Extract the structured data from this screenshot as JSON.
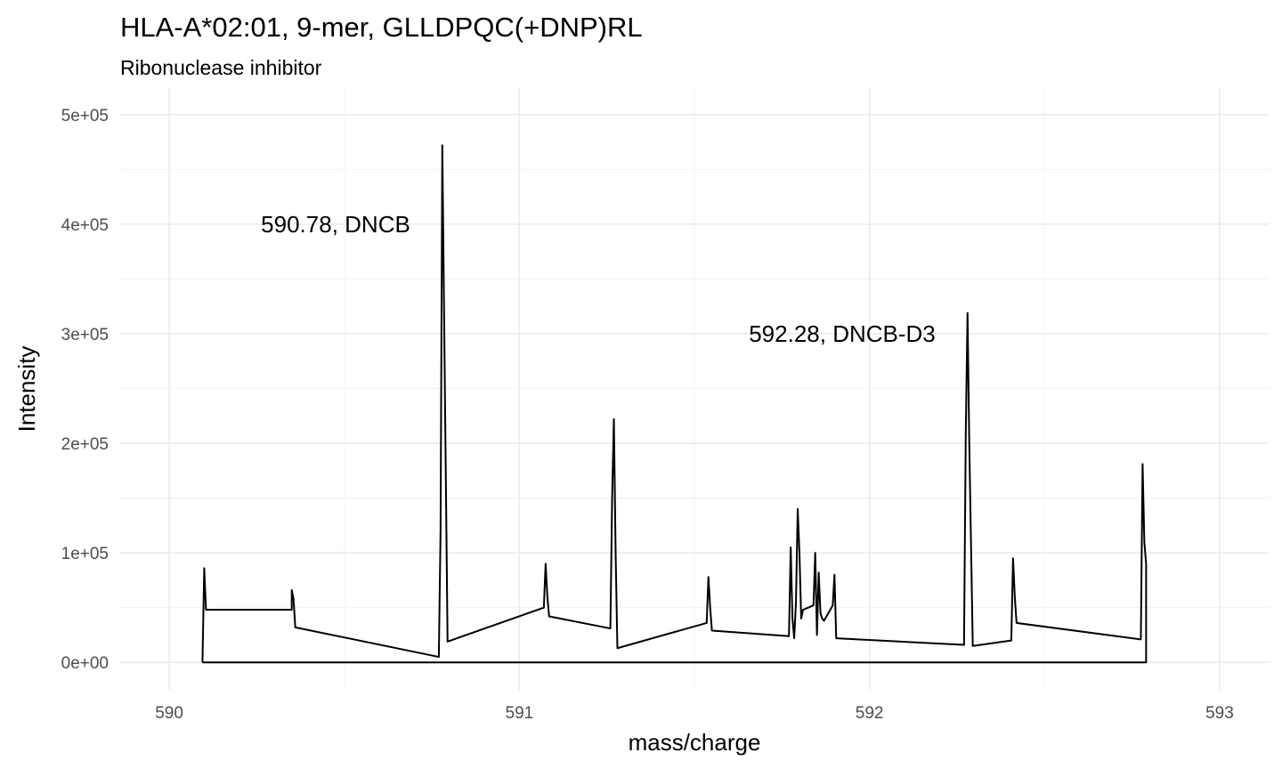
{
  "chart_data": {
    "type": "line",
    "title": "HLA-A*02:01, 9-mer, GLLDPQC(+DNP)RL",
    "subtitle": "Ribonuclease inhibitor",
    "xlabel": "mass/charge",
    "ylabel": "Intensity",
    "xlim": [
      589.86,
      593.14
    ],
    "ylim": [
      -25000,
      525000
    ],
    "x_ticks": [
      590,
      591,
      592,
      593
    ],
    "x_tick_labels": [
      "590",
      "591",
      "592",
      "593"
    ],
    "y_ticks": [
      0,
      100000,
      200000,
      300000,
      400000,
      500000
    ],
    "y_tick_labels": [
      "0e+00",
      "1e+05",
      "2e+05",
      "3e+05",
      "4e+05",
      "5e+05"
    ],
    "grid": true,
    "series": [
      {
        "x": [
          590.095,
          590.1,
          590.105,
          590.11,
          590.35,
          590.35,
          590.355,
          590.36,
          590.77,
          590.775,
          590.78,
          590.785,
          590.795,
          591.07,
          591.075,
          591.08,
          591.085,
          591.26,
          591.265,
          591.27,
          591.275,
          591.28,
          591.535,
          591.54,
          591.545,
          591.55,
          591.77,
          591.775,
          591.78,
          591.785,
          591.79,
          591.795,
          591.8,
          591.805,
          591.81,
          591.84,
          591.845,
          591.85,
          591.855,
          591.86,
          591.865,
          591.87,
          591.895,
          591.9,
          591.905,
          592.27,
          592.275,
          592.28,
          592.285,
          592.295,
          592.405,
          592.41,
          592.415,
          592.42,
          592.775,
          592.78,
          592.785,
          592.79,
          592.79,
          590.095
        ],
        "y": [
          0,
          86000,
          48000,
          48000,
          48000,
          66000,
          58000,
          32000,
          5000,
          120000,
          472000,
          320000,
          19000,
          50000,
          90000,
          60000,
          42000,
          31000,
          150000,
          222000,
          100000,
          13000,
          36000,
          78000,
          50000,
          29000,
          24000,
          105000,
          40000,
          22000,
          55000,
          140000,
          100000,
          40000,
          48000,
          52000,
          100000,
          25000,
          82000,
          45000,
          40000,
          38000,
          52000,
          80000,
          22000,
          16000,
          210000,
          319000,
          200000,
          15000,
          20000,
          95000,
          60000,
          36000,
          21000,
          181000,
          110000,
          90000,
          0,
          0
        ]
      }
    ],
    "annotations": [
      {
        "text": "590.78, DNCB",
        "x": 590.78,
        "y": 400000
      },
      {
        "text": "592.28, DNCB-D3",
        "x": 592.28,
        "y": 300000
      }
    ]
  }
}
